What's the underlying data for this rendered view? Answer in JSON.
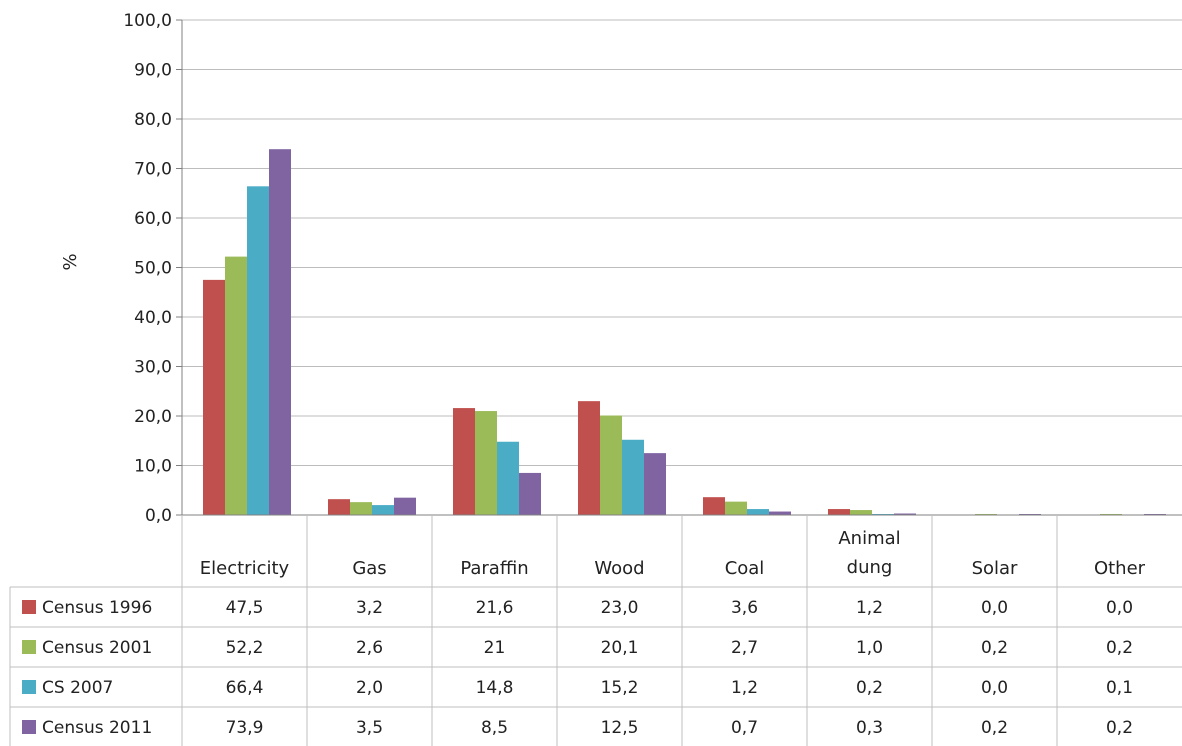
{
  "chart_data": {
    "type": "bar",
    "title": "",
    "xlabel": "",
    "ylabel": "%",
    "ylim": [
      0,
      100
    ],
    "yticks": [
      0,
      10,
      20,
      30,
      40,
      50,
      60,
      70,
      80,
      90,
      100
    ],
    "ytick_labels": [
      "0,0",
      "10,0",
      "20,0",
      "30,0",
      "40,0",
      "50,0",
      "60,0",
      "70,0",
      "80,0",
      "90,0",
      "100,0"
    ],
    "grid": true,
    "legend": "data-table-left",
    "categories": [
      "Electricity",
      "Gas",
      "Paraffin",
      "Wood",
      "Coal",
      "Animal dung",
      "Solar",
      "Other"
    ],
    "category_label_lines": [
      [
        "Electricity"
      ],
      [
        "Gas"
      ],
      [
        "Paraffin"
      ],
      [
        "Wood"
      ],
      [
        "Coal"
      ],
      [
        "Animal",
        "dung"
      ],
      [
        "Solar"
      ],
      [
        "Other"
      ]
    ],
    "series": [
      {
        "name": "Census 1996",
        "color": "#C0504D",
        "values": [
          47.5,
          3.2,
          21.6,
          23.0,
          3.6,
          1.2,
          0.0,
          0.0
        ],
        "labels": [
          "47,5",
          "3,2",
          "21,6",
          "23,0",
          "3,6",
          "1,2",
          "0,0",
          "0,0"
        ]
      },
      {
        "name": "Census 2001",
        "color": "#9BBB59",
        "values": [
          52.2,
          2.6,
          21,
          20.1,
          2.7,
          1.0,
          0.2,
          0.2
        ],
        "labels": [
          "52,2",
          "2,6",
          "21",
          "20,1",
          "2,7",
          "1,0",
          "0,2",
          "0,2"
        ]
      },
      {
        "name": "CS 2007",
        "color": "#4BACC6",
        "values": [
          66.4,
          2.0,
          14.8,
          15.2,
          1.2,
          0.2,
          0.0,
          0.1
        ],
        "labels": [
          "66,4",
          "2,0",
          "14,8",
          "15,2",
          "1,2",
          "0,2",
          "0,0",
          "0,1"
        ]
      },
      {
        "name": "Census 2011",
        "color": "#8064A2",
        "values": [
          73.9,
          3.5,
          8.5,
          12.5,
          0.7,
          0.3,
          0.2,
          0.2
        ],
        "labels": [
          "73,9",
          "3,5",
          "8,5",
          "12,5",
          "0,7",
          "0,3",
          "0,2",
          "0,2"
        ]
      }
    ]
  }
}
